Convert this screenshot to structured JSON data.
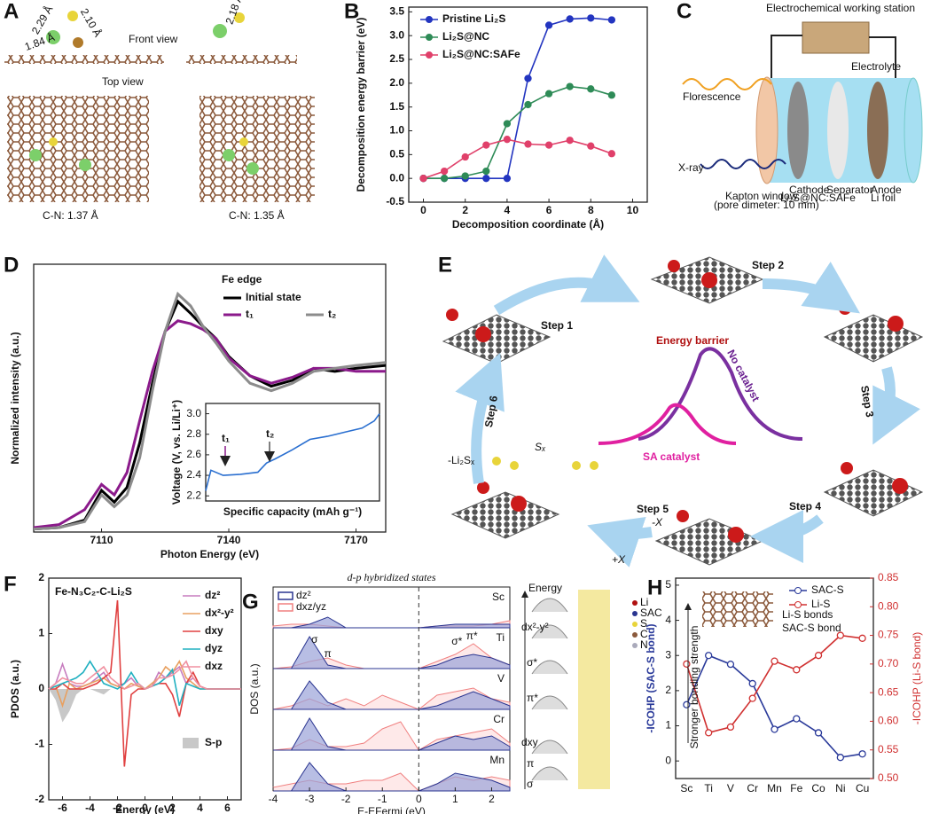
{
  "figure_a": {
    "panel": "A",
    "front_view": "Front view",
    "top_view": "Top view",
    "bonds": [
      "2.29 Å",
      "2.10 Å",
      "1.84 Å",
      "2.18 Å"
    ],
    "cn": [
      "C-N: 1.37 Å",
      "C-N: 1.35 Å"
    ]
  },
  "figure_c": {
    "panel": "C",
    "station": "Electrochemical working station",
    "electrolyte": "Electrolyte",
    "florescence": "Florescence",
    "xray": "X-ray",
    "window": "Kapton window",
    "window_note": "(pore dimeter: 10 mm)",
    "cathode": "Cathode",
    "cathode_material": "Li₂S@NC:SAFe",
    "separator": "Separator",
    "anode": "Anode",
    "anode_material": "Li foil"
  },
  "figure_e": {
    "panel": "E",
    "steps": [
      "Step 1",
      "Step 2",
      "Step 3",
      "Step 4",
      "Step 5",
      "Step 6"
    ],
    "energy_barrier": "Energy barrier",
    "no_catalyst": "No catalyst",
    "sa_catalyst": "SA catalyst",
    "removed": "-Li₂Sₓ",
    "chain": "Sₓ",
    "minus_x": "-X",
    "plus_x": "+X"
  },
  "figure_g_scheme": {
    "energy": "Energy",
    "levels": [
      "dx²-y²",
      "σ*",
      "π*",
      "dxy",
      "π",
      "σ"
    ],
    "legend": [
      "Li",
      "SAC",
      "S",
      "C",
      "N"
    ]
  },
  "chart_data": [
    {
      "type": "line",
      "panel": "B",
      "xlabel": "Decomposition coordinate (Å)",
      "ylabel": "Decomposition energy barrier (eV)",
      "markers": "filled",
      "xlim": [
        -0.7,
        10.7
      ],
      "xticks": [
        0,
        2,
        4,
        6,
        8,
        10
      ],
      "ylim": [
        -0.5,
        3.6
      ],
      "yticks": [
        -0.5,
        {
          "value": 0,
          "label": "0.0"
        },
        0.5,
        {
          "value": 1,
          "label": "1.0"
        },
        1.5,
        {
          "value": 2,
          "label": "2.0"
        },
        2.5,
        {
          "value": 3,
          "label": "3.0"
        },
        3.5
      ],
      "x": [
        0,
        1,
        2,
        3,
        4,
        5,
        6,
        7,
        8,
        9
      ],
      "series": [
        {
          "name": "Pristine Li₂S",
          "color": "#2335c0",
          "values": [
            0,
            0,
            0,
            0,
            0,
            2.1,
            3.22,
            3.35,
            3.37,
            3.33
          ]
        },
        {
          "name": "Li₂S@NC",
          "color": "#2e8b57",
          "values": [
            0,
            0,
            0.05,
            0.15,
            1.15,
            1.55,
            1.78,
            1.93,
            1.88,
            1.75
          ]
        },
        {
          "name": "Li₂S@NC:SAFe",
          "color": "#e0406a",
          "values": [
            0,
            0.15,
            0.45,
            0.7,
            0.82,
            0.72,
            0.7,
            0.8,
            0.68,
            0.52
          ]
        }
      ]
    },
    {
      "type": "line",
      "panel": "D",
      "title": "Fe edge",
      "xlabel": "Photon Energy (eV)",
      "ylabel": "Normalized intensity (a.u.)",
      "xlim": [
        7094,
        7177
      ],
      "xticks": [
        7110,
        7140,
        7170
      ],
      "ylim": [
        0,
        1.8
      ],
      "x": [
        7094,
        7100,
        7106,
        7110,
        7113,
        7116,
        7119,
        7122,
        7125,
        7128,
        7131,
        7134,
        7137,
        7140,
        7145,
        7150,
        7155,
        7160,
        7165,
        7170,
        7177
      ],
      "series": [
        {
          "name": "Initial state",
          "color": "#000000",
          "values": [
            0.02,
            0.03,
            0.08,
            0.28,
            0.2,
            0.3,
            0.6,
            1.0,
            1.35,
            1.55,
            1.47,
            1.38,
            1.3,
            1.18,
            1.05,
            0.98,
            1.02,
            1.1,
            1.08,
            1.1,
            1.12
          ]
        },
        {
          "name": "t₁",
          "color": "#8b1a8b",
          "values": [
            0.03,
            0.05,
            0.15,
            0.32,
            0.25,
            0.4,
            0.75,
            1.08,
            1.35,
            1.42,
            1.4,
            1.36,
            1.3,
            1.17,
            1.05,
            1.0,
            1.04,
            1.1,
            1.1,
            1.08,
            1.08
          ]
        },
        {
          "name": "t₂",
          "color": "#8c8c8c",
          "values": [
            0.02,
            0.03,
            0.07,
            0.25,
            0.17,
            0.25,
            0.5,
            0.95,
            1.35,
            1.6,
            1.52,
            1.38,
            1.27,
            1.15,
            1.0,
            0.95,
            1.0,
            1.08,
            1.1,
            1.12,
            1.14
          ]
        }
      ]
    },
    {
      "type": "line",
      "xlabel": "Specific capacity (mAh g⁻¹)",
      "ylabel": "Voltage (V, vs. Li/Li⁺)",
      "annotations": [
        "t₁",
        "t₂"
      ],
      "xlim": [
        0,
        10
      ],
      "ylim": [
        2.15,
        3.1
      ],
      "yticks": [
        2.2,
        2.4,
        2.6,
        2.8,
        {
          "value": 3,
          "label": "3.0"
        }
      ],
      "x": [
        0,
        0.3,
        1,
        2,
        3,
        3.5,
        4,
        5,
        6,
        7,
        8,
        9,
        9.7,
        10
      ],
      "series": [
        {
          "color": "#2a6fd0",
          "values": [
            2.25,
            2.45,
            2.4,
            2.41,
            2.43,
            2.52,
            2.56,
            2.65,
            2.75,
            2.78,
            2.82,
            2.86,
            2.93,
            3.0
          ]
        }
      ]
    },
    {
      "type": "line",
      "panel": "F",
      "title": "Fe-N₃C₂-C-Li₂S",
      "xlabel": "Energy (eV)",
      "ylabel": "PDOS (a.u.)",
      "xlim": [
        -7,
        7
      ],
      "xticks": [
        -6,
        -4,
        -2,
        0,
        2,
        4,
        6
      ],
      "ylim": [
        -2,
        2
      ],
      "yticks": [
        -2,
        -1,
        0,
        1,
        2
      ],
      "x": [
        -7,
        -6.5,
        -6,
        -5.5,
        -5,
        -4.5,
        -4,
        -3.5,
        -3,
        -2.5,
        -2,
        -1.5,
        -1,
        -0.5,
        0,
        0.5,
        1,
        1.5,
        2,
        2.5,
        3,
        3.5,
        4,
        4.5,
        5,
        5.5,
        6,
        6.5,
        7
      ],
      "series": [
        {
          "name": "S-p",
          "color": "#c8c8c8",
          "area": true,
          "values": [
            0,
            -0.2,
            -0.6,
            -0.4,
            -0.1,
            0,
            0,
            -0.05,
            -0.1,
            0,
            0,
            0,
            0,
            0,
            0,
            0,
            0,
            0,
            0,
            0,
            0,
            0,
            0,
            0,
            0,
            0,
            0,
            0,
            0
          ]
        },
        {
          "name": "dz²",
          "color": "#c77dbf",
          "values": [
            0,
            0.1,
            0.45,
            0.1,
            0.05,
            0.05,
            0.1,
            0.2,
            0.3,
            0.1,
            0.05,
            0.1,
            0.2,
            0.05,
            0,
            0.05,
            0.3,
            0.2,
            0.3,
            0.4,
            0.1,
            0.2,
            0.05,
            0,
            0,
            0,
            0,
            0,
            0
          ]
        },
        {
          "name": "dx²-y²",
          "color": "#e8a060",
          "values": [
            0,
            0.05,
            -0.3,
            0.1,
            0,
            0.05,
            0.1,
            0.15,
            0.2,
            0.1,
            0.05,
            0,
            0.1,
            0.05,
            0,
            0.1,
            0.2,
            0.4,
            0.3,
            0.5,
            0.2,
            0.1,
            0,
            0,
            0,
            0,
            0,
            0,
            0
          ]
        },
        {
          "name": "dxy",
          "color": "#e04040",
          "values": [
            0,
            0,
            0.1,
            0,
            0,
            0,
            0.05,
            0.1,
            0.2,
            0.3,
            1.6,
            -1.4,
            -0.1,
            0,
            0,
            0.05,
            0.1,
            0.1,
            -0.1,
            -0.5,
            0.1,
            0.3,
            0.05,
            0,
            0,
            0,
            0,
            0,
            0
          ]
        },
        {
          "name": "dyz",
          "color": "#20b0c0",
          "values": [
            0,
            0.05,
            0.1,
            0.15,
            0.2,
            0.3,
            0.5,
            0.3,
            0.1,
            0.05,
            0,
            0.1,
            0.3,
            0.1,
            0,
            0.05,
            0.1,
            0.2,
            0.35,
            -0.3,
            0.1,
            0.05,
            0,
            0,
            0,
            0,
            0,
            0,
            0
          ]
        },
        {
          "name": "dxz",
          "color": "#f090a0",
          "values": [
            0,
            0.1,
            0.2,
            0.15,
            0.1,
            0.1,
            0.2,
            0.3,
            0.4,
            0.2,
            0.1,
            0,
            0.05,
            0.1,
            0,
            0.05,
            0.2,
            0.2,
            0.25,
            0.35,
            0.5,
            0.2,
            0.05,
            0,
            0,
            0,
            0,
            0,
            0
          ]
        }
      ]
    },
    {
      "type": "dos_stack",
      "panel": "G",
      "title": "d-p hybridized states",
      "xlabel": "E-EFermi (eV)",
      "ylabel": "DOS (a.u.)",
      "xlim": [
        -4,
        2.5
      ],
      "xticks": [
        -4,
        -3,
        -2,
        -1,
        0,
        1,
        2
      ],
      "ylim": [
        0,
        1
      ],
      "fermi_line": 0,
      "annotations": [
        "σ",
        "π",
        "σ*",
        "π*"
      ],
      "legend": [
        {
          "name": "dz²",
          "color": "#2a3590"
        },
        {
          "name": "dxz/yz",
          "color": "#f08080"
        }
      ],
      "x": [
        -4,
        -3.5,
        -3,
        -2.5,
        -2,
        -1.5,
        -1,
        -0.5,
        0,
        0.5,
        1,
        1.5,
        2,
        2.5
      ],
      "panels": [
        {
          "name": "Sc",
          "d": [
            0,
            0,
            0.1,
            0.3,
            0,
            0,
            0,
            0,
            0,
            0.05,
            0.1,
            0.1,
            0.1,
            0.1
          ],
          "p": [
            0.05,
            0.1,
            0.1,
            0.05,
            0,
            0,
            0,
            0,
            0,
            0.05,
            0.05,
            0.05,
            0.1,
            0.2
          ]
        },
        {
          "name": "Ti",
          "d": [
            0,
            0,
            0.9,
            0.1,
            0,
            0,
            0,
            0,
            0,
            0.1,
            0.3,
            0.4,
            0.3,
            0.1
          ],
          "p": [
            0,
            0.05,
            0.2,
            0.3,
            0.1,
            0,
            0,
            0,
            0,
            0.2,
            0.4,
            0.7,
            0.3,
            0.1
          ]
        },
        {
          "name": "V",
          "d": [
            0,
            0,
            0.8,
            0.2,
            0,
            0,
            0,
            0,
            0,
            0.1,
            0.3,
            0.5,
            0.3,
            0.1
          ],
          "p": [
            0,
            0.1,
            0.3,
            0.1,
            0.3,
            0.1,
            0.4,
            0.2,
            0,
            0.4,
            0.5,
            0.6,
            0.3,
            0.2
          ]
        },
        {
          "name": "Cr",
          "d": [
            0,
            0,
            0.9,
            0.1,
            0,
            0,
            0,
            0,
            0,
            0.2,
            0.4,
            0.3,
            0.4,
            0.1
          ],
          "p": [
            0,
            0.05,
            0.3,
            0.1,
            0.1,
            0.2,
            0.6,
            0.8,
            0,
            0.3,
            0.4,
            0.5,
            0.6,
            0.2
          ]
        },
        {
          "name": "Mn",
          "d": [
            0,
            0,
            0.8,
            0.2,
            0,
            0,
            0,
            0,
            0,
            0.2,
            0.5,
            0.4,
            0.3,
            0.1
          ],
          "p": [
            0.1,
            0.2,
            0.3,
            0.2,
            0.2,
            0.3,
            0.3,
            0.5,
            0,
            0.2,
            0.4,
            0.3,
            0.4,
            0.3
          ]
        }
      ]
    },
    {
      "type": "line",
      "panel": "H",
      "markers": "hollow",
      "ylabel": "-ICOHP (SAC-S bond)",
      "y2label": "-ICOHP (Li-S bond)",
      "annotations": [
        "Stronger bonding strength",
        "Li-S bonds",
        "SAC-S bond"
      ],
      "categories": [
        "Sc",
        "Ti",
        "V",
        "Cr",
        "Mn",
        "Fe",
        "Co",
        "Ni",
        "Cu"
      ],
      "ylim": [
        -0.5,
        5.2
      ],
      "yticks": [
        0,
        1,
        2,
        3,
        4,
        5
      ],
      "y2lim": [
        0.5,
        0.85
      ],
      "y2ticks": [
        {
          "value": 0.5,
          "label": "0.50"
        },
        0.55,
        {
          "value": 0.6,
          "label": "0.60"
        },
        0.65,
        {
          "value": 0.7,
          "label": "0.70"
        },
        0.75,
        {
          "value": 0.8,
          "label": "0.80"
        },
        0.85
      ],
      "series": [
        {
          "name": "SAC-S",
          "color": "#2a3a9a",
          "values": [
            1.6,
            3.0,
            2.75,
            2.2,
            0.9,
            1.2,
            0.8,
            0.1,
            0.2
          ]
        },
        {
          "name": "Li-S",
          "color": "#d03030",
          "axis": "y2",
          "values": [
            0.7,
            0.58,
            0.59,
            0.64,
            0.705,
            0.69,
            0.715,
            0.75,
            0.745
          ]
        }
      ]
    }
  ]
}
